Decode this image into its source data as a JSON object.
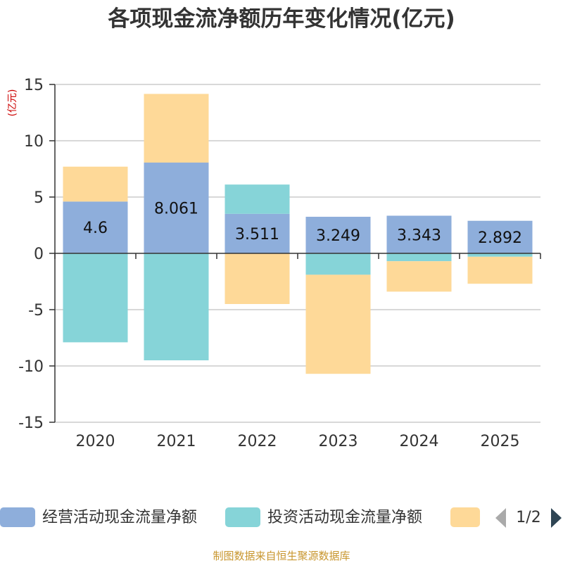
{
  "chart_data": {
    "type": "bar",
    "stacked": true,
    "title": "各项现金流净额历年变化情况(亿元)",
    "ylabel": "(亿元)",
    "ylim": [
      -15,
      15
    ],
    "yticks": [
      15,
      10,
      5,
      0,
      -5,
      -10,
      -15
    ],
    "categories": [
      "2020",
      "2021",
      "2022",
      "2023",
      "2024",
      "2025"
    ],
    "series": [
      {
        "name": "经营活动现金流量净额",
        "color": "#8eaedb",
        "values": [
          4.6,
          8.061,
          3.511,
          3.249,
          3.343,
          2.892
        ],
        "labels": [
          "4.6",
          "8.061",
          "3.511",
          "3.249",
          "3.343",
          "2.892"
        ]
      },
      {
        "name": "投资活动现金流量净额",
        "color": "#86d4d8",
        "values": [
          -7.9,
          -9.5,
          2.6,
          -1.9,
          -0.7,
          -0.3
        ]
      },
      {
        "name": "",
        "color": "#fed998",
        "values": [
          3.1,
          6.1,
          -4.5,
          -8.8,
          -2.7,
          -2.4
        ]
      }
    ],
    "legend": {
      "position": "bottom",
      "page": "1/2"
    }
  },
  "footer": {
    "source": "制图数据来自恒生聚源数据库"
  }
}
